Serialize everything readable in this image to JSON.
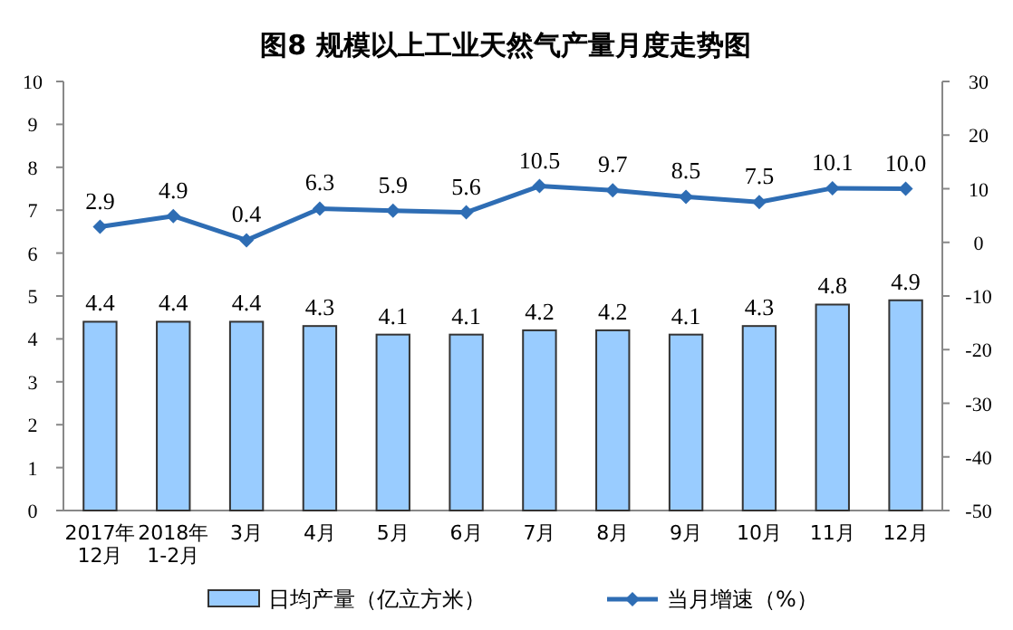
{
  "chart_data": {
    "type": "bar",
    "title": "图8  规模以上工业天然气产量月度走势图",
    "categories": [
      "2017年\n12月",
      "2018年\n1-2月",
      "3月",
      "4月",
      "5月",
      "6月",
      "7月",
      "8月",
      "9月",
      "10月",
      "11月",
      "12月"
    ],
    "series": [
      {
        "name": "日均产量（亿立方米）",
        "color": "#99ccff",
        "values": [
          4.4,
          4.4,
          4.4,
          4.3,
          4.1,
          4.1,
          4.2,
          4.2,
          4.1,
          4.3,
          4.8,
          4.9
        ],
        "value_labels": [
          "4.4",
          "4.4",
          "4.4",
          "4.3",
          "4.1",
          "4.1",
          "4.2",
          "4.2",
          "4.1",
          "4.3",
          "4.8",
          "4.9"
        ]
      },
      {
        "name": "当月增速（%）",
        "type": "line",
        "axis": "y2",
        "color": "#2e6db4",
        "marker": "diamond",
        "values": [
          2.9,
          4.9,
          0.4,
          6.3,
          5.9,
          5.6,
          10.5,
          9.7,
          8.5,
          7.5,
          10.1,
          10.0
        ],
        "value_labels": [
          "2.9",
          "4.9",
          "0.4",
          "6.3",
          "5.9",
          "5.6",
          "10.5",
          "9.7",
          "8.5",
          "7.5",
          "10.1",
          "10.0"
        ]
      }
    ],
    "ylim": [
      0,
      10
    ],
    "yticks": [
      0,
      1,
      2,
      3,
      4,
      5,
      6,
      7,
      8,
      9,
      10
    ],
    "y2lim": [
      -50,
      30
    ],
    "y2ticks": [
      -50,
      -40,
      -30,
      -20,
      -10,
      0,
      10,
      20,
      30
    ],
    "grid": false,
    "legend": "bottom"
  }
}
